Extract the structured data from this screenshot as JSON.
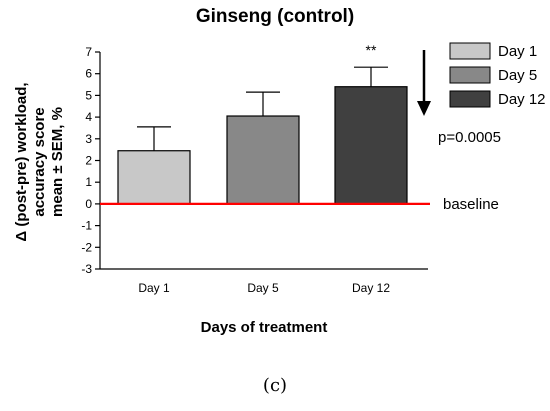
{
  "chart_data": {
    "type": "bar",
    "title": "Ginseng (control)",
    "xlabel": "Days of treatment",
    "ylabel": [
      "Δ (post-pre) workload,",
      "accuracy score",
      "mean ± SEM, %"
    ],
    "categories": [
      "Day 1",
      "Day 5",
      "Day 12"
    ],
    "values": [
      2.45,
      4.05,
      5.4
    ],
    "errors": [
      1.1,
      1.1,
      0.9
    ],
    "ylim": [
      -3,
      7
    ],
    "yticks": [
      -3,
      -2,
      -1,
      0,
      1,
      2,
      3,
      4,
      5,
      6,
      7
    ],
    "bar_colors": [
      "#c8c8c8",
      "#888888",
      "#404040"
    ],
    "baseline": {
      "value": 0,
      "label": "baseline",
      "color": "#ff0000"
    },
    "significance": {
      "category": "Day 12",
      "label": "**"
    },
    "legend": {
      "placement": "right",
      "entries": [
        "Day 1",
        "Day 5",
        "Day 12"
      ]
    },
    "trend_note": "p=0.0005",
    "grid": false
  },
  "caption": "(c)"
}
